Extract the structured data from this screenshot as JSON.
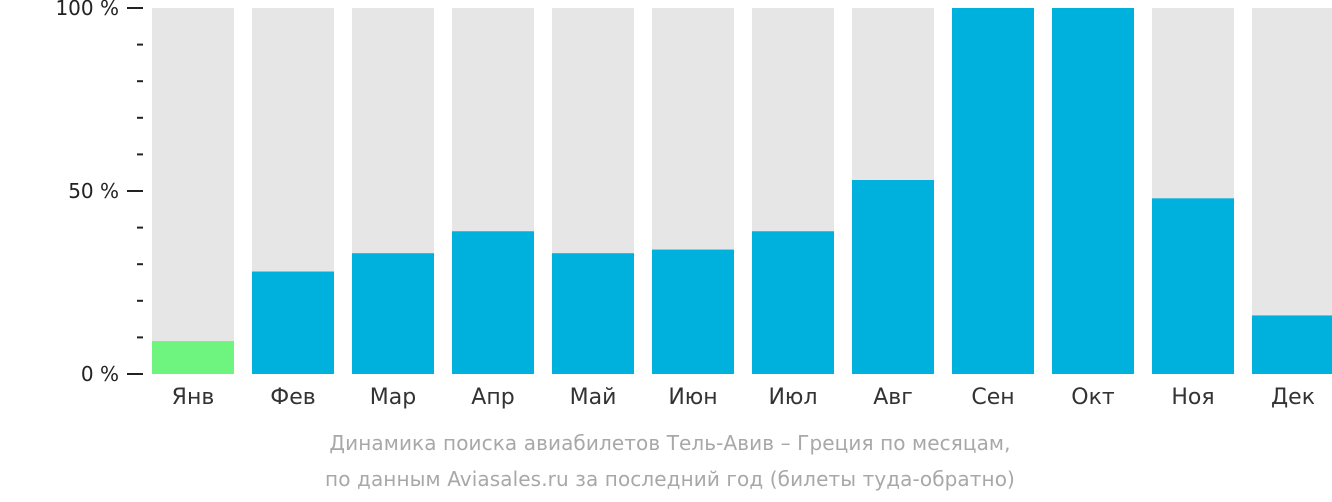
{
  "chart_data": {
    "type": "bar",
    "categories": [
      "Янв",
      "Фев",
      "Мар",
      "Апр",
      "Май",
      "Июн",
      "Июл",
      "Авг",
      "Сен",
      "Окт",
      "Ноя",
      "Дек"
    ],
    "values": [
      9,
      28,
      33,
      39,
      33,
      34,
      39,
      53,
      100,
      100,
      48,
      16
    ],
    "max_value": 100,
    "ylim": [
      0,
      100
    ],
    "y_tick_labels": [
      "0 %",
      "50 %",
      "100 %"
    ],
    "y_tick_values": [
      0,
      50,
      100
    ],
    "y_minor_step": 10,
    "grid": false,
    "legend": "none",
    "highlight_index": 0,
    "colors": {
      "bar": "#00b0dd",
      "highlight_bar": "#6ef57f",
      "bar_background": "#e6e6e6",
      "axis": "#222222"
    },
    "caption": [
      "Динамика поиска авиабилетов Тель-Авив – Греция по месяцам,",
      "по данным Aviasales.ru за последний год (билеты туда-обратно)"
    ]
  }
}
